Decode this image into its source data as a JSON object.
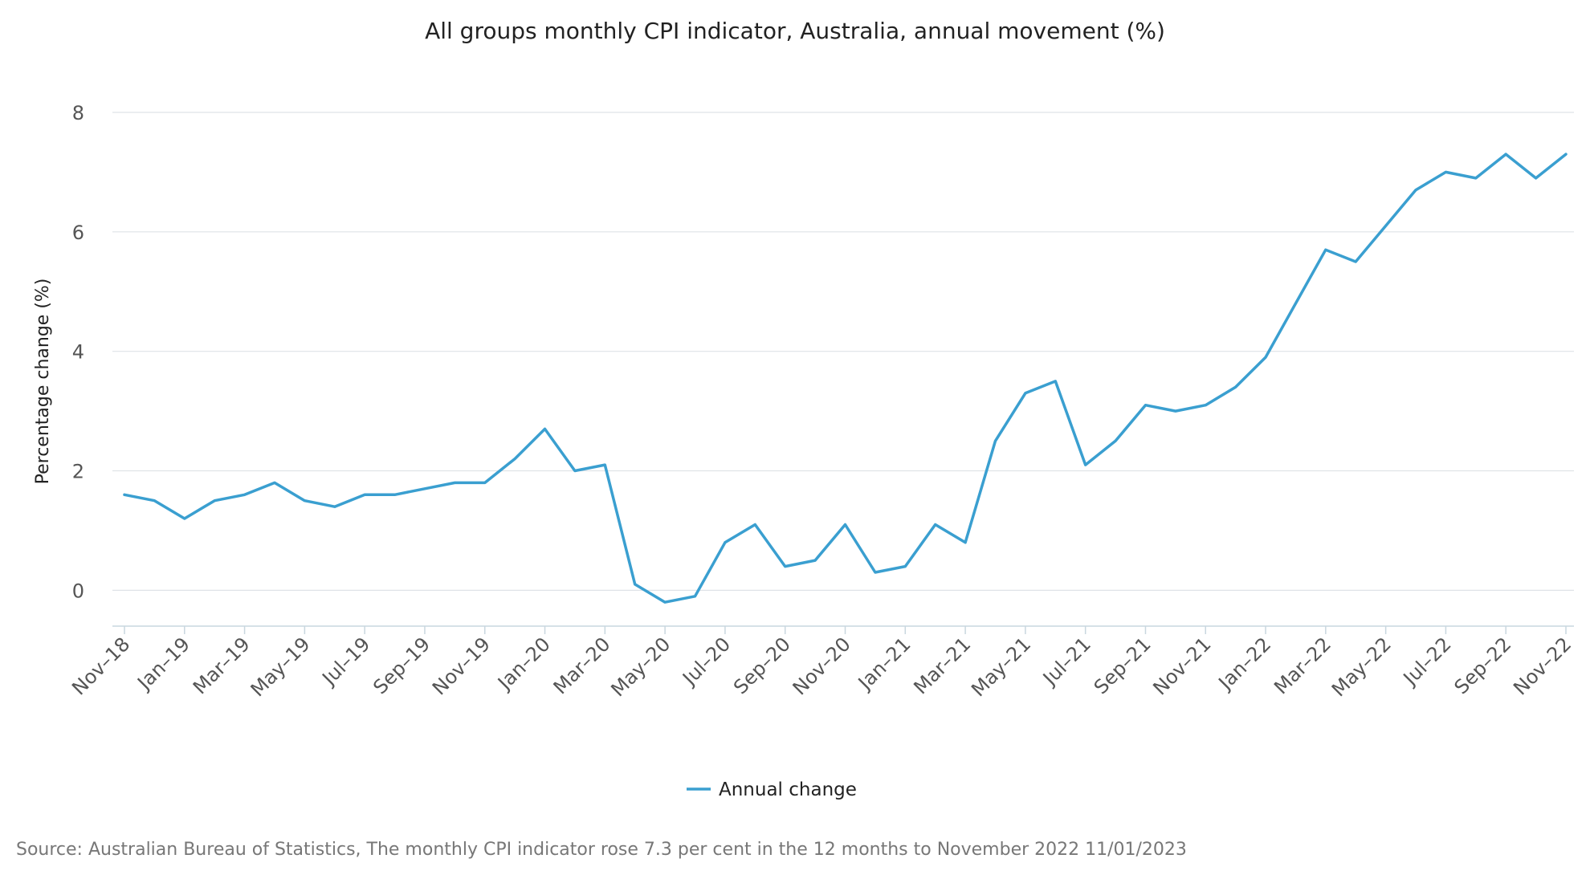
{
  "colors": {
    "series": "#3a9fd0",
    "grid": "#dfe3e7",
    "axis": "#c9d7df",
    "text": "#222222",
    "muted": "#777777"
  },
  "chart_data": {
    "type": "line",
    "title": "All groups monthly CPI indicator, Australia, annual movement (%)",
    "xlabel": "",
    "ylabel": "Percentage change (%)",
    "ylim": [
      -0.6,
      8
    ],
    "yticks": [
      0,
      2,
      4,
      6,
      8
    ],
    "grid": true,
    "legend_position": "bottom-center",
    "x": [
      "Nov-18",
      "Dec-18",
      "Jan-19",
      "Feb-19",
      "Mar-19",
      "Apr-19",
      "May-19",
      "Jun-19",
      "Jul-19",
      "Aug-19",
      "Sep-19",
      "Oct-19",
      "Nov-19",
      "Dec-19",
      "Jan-20",
      "Feb-20",
      "Mar-20",
      "Apr-20",
      "May-20",
      "Jun-20",
      "Jul-20",
      "Aug-20",
      "Sep-20",
      "Oct-20",
      "Nov-20",
      "Dec-20",
      "Jan-21",
      "Feb-21",
      "Mar-21",
      "Apr-21",
      "May-21",
      "Jun-21",
      "Jul-21",
      "Aug-21",
      "Sep-21",
      "Oct-21",
      "Nov-21",
      "Dec-21",
      "Jan-22",
      "Feb-22",
      "Mar-22",
      "Apr-22",
      "May-22",
      "Jun-22",
      "Jul-22",
      "Aug-22",
      "Sep-22",
      "Oct-22",
      "Nov-22"
    ],
    "x_tick_labels": [
      "Nov–18",
      "Jan–19",
      "Mar–19",
      "May–19",
      "Jul–19",
      "Sep–19",
      "Nov–19",
      "Jan–20",
      "Mar–20",
      "May–20",
      "Jul–20",
      "Sep–20",
      "Nov–20",
      "Jan–21",
      "Mar–21",
      "May–21",
      "Jul–21",
      "Sep–21",
      "Nov–21",
      "Jan–22",
      "Mar–22",
      "May–22",
      "Jul–22",
      "Sep–22",
      "Nov–22"
    ],
    "series": [
      {
        "name": "Annual change",
        "values": [
          1.6,
          1.5,
          1.2,
          1.5,
          1.6,
          1.8,
          1.5,
          1.4,
          1.6,
          1.6,
          1.7,
          1.8,
          1.8,
          2.2,
          2.7,
          2.0,
          2.1,
          0.1,
          -0.2,
          -0.1,
          0.8,
          1.1,
          0.4,
          0.5,
          1.1,
          0.3,
          0.4,
          1.1,
          0.8,
          2.5,
          3.3,
          3.5,
          2.1,
          2.5,
          3.1,
          3.0,
          3.1,
          3.4,
          3.9,
          4.8,
          5.7,
          5.5,
          6.1,
          6.7,
          7.0,
          6.9,
          7.3,
          6.9,
          7.3
        ]
      }
    ]
  },
  "source_note": "Source: Australian Bureau of Statistics, The monthly CPI indicator rose 7.3 per cent in the 12 months to November 2022 11/01/2023"
}
